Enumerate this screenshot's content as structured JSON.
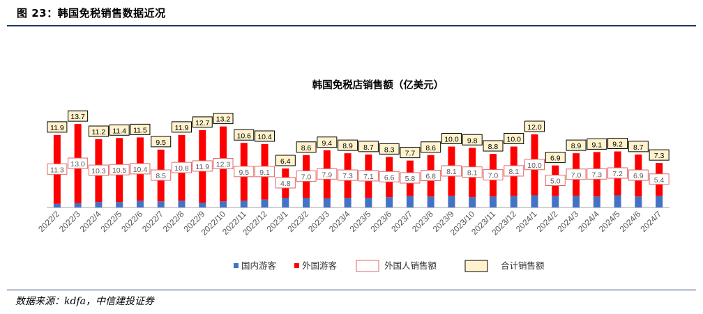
{
  "figure_title": "图 23：韩国免税销售数据近况",
  "source": "数据来源：kdfa，中信建投证券",
  "chart_data": {
    "type": "bar",
    "title": "韩国免税店销售额（亿美元）",
    "categories": [
      "2022/2",
      "2022/3",
      "2022/4",
      "2022/5",
      "2022/6",
      "2022/7",
      "2022/8",
      "2022/9",
      "2022/10",
      "2022/11",
      "2022/12",
      "2023/1",
      "2023/2",
      "2023/3",
      "2023/4",
      "2023/5",
      "2023/6",
      "2023/7",
      "2023/8",
      "2023/9",
      "2023/10",
      "2023/11",
      "2023/12",
      "2024/1",
      "2024/2",
      "2024/3",
      "2024/4",
      "2024/5",
      "2024/6",
      "2024/7"
    ],
    "series": [
      {
        "name": "国内游客",
        "color": "#4472c4",
        "values": [
          0.6,
          0.7,
          0.9,
          0.9,
          1.1,
          1.0,
          1.1,
          0.8,
          1.0,
          1.1,
          1.3,
          1.6,
          1.6,
          1.5,
          1.6,
          1.6,
          1.7,
          1.9,
          1.8,
          1.9,
          1.7,
          1.8,
          1.9,
          2.0,
          1.9,
          1.9,
          1.8,
          2.0,
          1.8,
          1.9
        ]
      },
      {
        "name": "外国游客",
        "color": "#ff0000",
        "values": [
          11.3,
          13.0,
          10.3,
          10.5,
          10.4,
          8.5,
          10.8,
          11.9,
          12.3,
          9.5,
          9.1,
          4.8,
          7.0,
          7.9,
          7.3,
          7.1,
          6.6,
          5.8,
          6.8,
          8.1,
          8.1,
          7.0,
          8.1,
          10.0,
          5.0,
          7.0,
          7.3,
          7.2,
          6.9,
          5.4
        ]
      }
    ],
    "label_series": [
      {
        "name": "外国人销售额",
        "values": [
          11.3,
          13.0,
          10.3,
          10.5,
          10.4,
          8.5,
          10.8,
          11.9,
          12.3,
          9.5,
          9.1,
          4.8,
          7.0,
          7.9,
          7.3,
          7.1,
          6.6,
          5.8,
          6.8,
          8.1,
          8.1,
          7.0,
          8.1,
          10.0,
          5.0,
          7.0,
          7.3,
          7.2,
          6.9,
          5.4
        ]
      },
      {
        "name": "合计销售额",
        "values": [
          11.9,
          13.7,
          11.2,
          11.4,
          11.5,
          9.5,
          11.9,
          12.7,
          13.2,
          10.6,
          10.4,
          6.4,
          8.6,
          9.4,
          8.9,
          8.7,
          8.3,
          7.7,
          8.6,
          10.0,
          9.8,
          8.8,
          10.0,
          12.0,
          6.9,
          8.9,
          9.1,
          9.2,
          8.7,
          7.3
        ]
      }
    ],
    "ylim": [
      0,
      16
    ],
    "grid": false,
    "legend_position": "bottom"
  }
}
